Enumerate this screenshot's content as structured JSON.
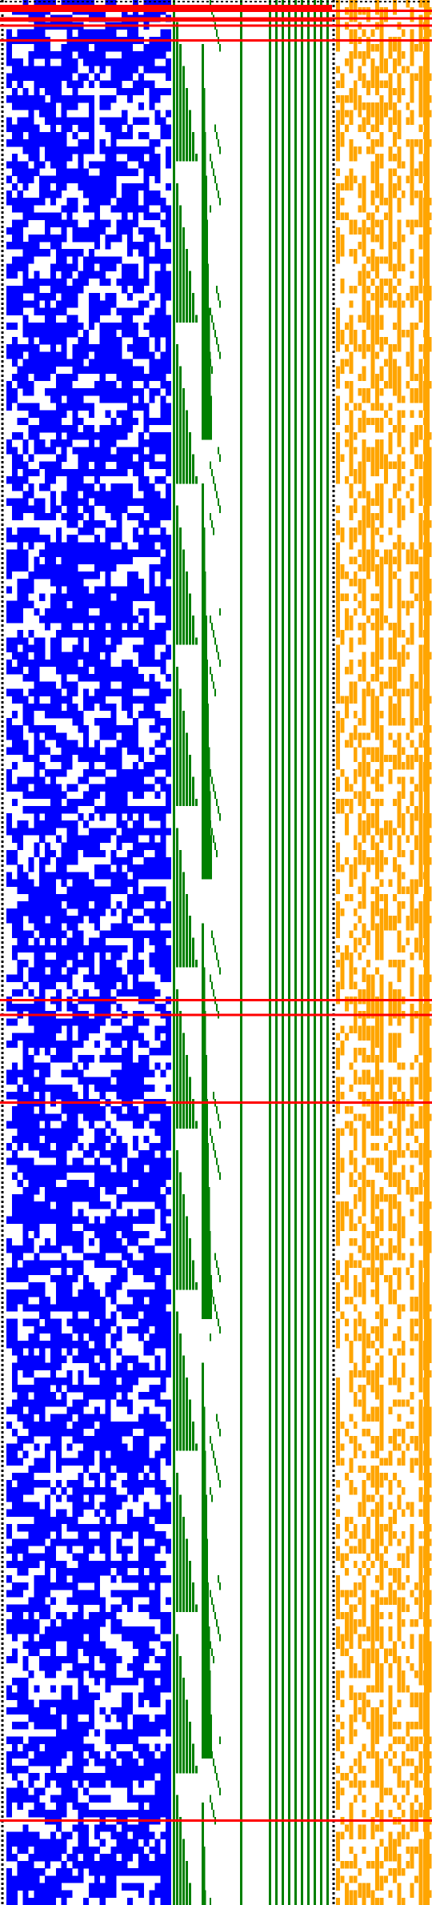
{
  "figure": {
    "kind": "binary cellular-automaton style block visualization",
    "background": "#ffffff",
    "colors": {
      "noise_block": "#0000ff",
      "triangle_block": "#008000",
      "right_block": "#ffa500",
      "row_markers": "#ff0000",
      "separators": "#000000"
    },
    "row_count": 260,
    "blocks": [
      {
        "name": "left-noise-block",
        "color_key": "noise_block",
        "density": 0.5
      },
      {
        "name": "middle-triangle-block",
        "color_key": "triangle_block"
      },
      {
        "name": "right-sparse-block",
        "color_key": "right_block",
        "density": 0.35
      }
    ],
    "marked_rows": [
      1,
      2,
      3,
      5,
      136,
      138,
      150,
      248
    ]
  }
}
